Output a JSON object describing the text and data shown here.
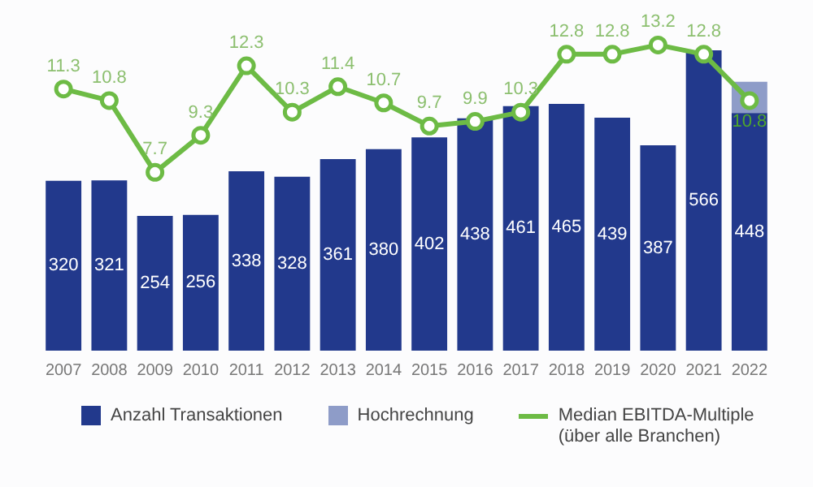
{
  "chart_data": {
    "type": "bar",
    "stacked": true,
    "categories": [
      "2007",
      "2008",
      "2009",
      "2010",
      "2011",
      "2012",
      "2013",
      "2014",
      "2015",
      "2016",
      "2017",
      "2018",
      "2019",
      "2020",
      "2021",
      "2022"
    ],
    "tick_labels": "x",
    "grid": false,
    "legend": "bottom",
    "series": [
      {
        "name": "Anzahl Transaktionen",
        "color": "#22398c",
        "values": [
          320,
          321,
          254,
          256,
          338,
          328,
          361,
          380,
          402,
          438,
          461,
          465,
          439,
          387,
          566,
          448
        ],
        "value_labels": [
          "320",
          "321",
          "254",
          "256",
          "338",
          "328",
          "361",
          "380",
          "402",
          "438",
          "461",
          "465",
          "439",
          "387",
          "566",
          "448"
        ]
      },
      {
        "name": "Hochrechnung",
        "color": "#8e9cc8",
        "values": [
          null,
          null,
          null,
          null,
          null,
          null,
          null,
          null,
          null,
          null,
          null,
          null,
          null,
          null,
          null,
          59
        ]
      },
      {
        "name": "Median EBITDA-Multiple\n(über alle Branchen)",
        "type": "line",
        "axis": "y2",
        "color": "#6dbb45",
        "marker": "circle",
        "line_style": "solid",
        "values": [
          11.3,
          10.8,
          7.7,
          9.3,
          12.3,
          10.3,
          11.4,
          10.7,
          9.7,
          9.9,
          10.3,
          12.8,
          12.8,
          13.2,
          12.8,
          10.8
        ],
        "value_labels": [
          "11.3",
          "10.8",
          "7.7",
          "9.3",
          "12.3",
          "10.3",
          "11.4",
          "10.7",
          "9.7",
          "9.9",
          "10.3",
          "12.8",
          "12.8",
          "13.2",
          "12.8",
          "10.8"
        ]
      }
    ]
  }
}
